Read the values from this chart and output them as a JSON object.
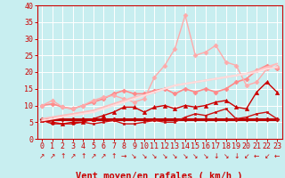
{
  "background_color": "#c8eef0",
  "grid_color": "#ffffff",
  "xlabel": "Vent moyen/en rafales ( km/h )",
  "xlim": [
    -0.5,
    23.5
  ],
  "ylim": [
    0,
    40
  ],
  "yticks": [
    0,
    5,
    10,
    15,
    20,
    25,
    30,
    35,
    40
  ],
  "xticks": [
    0,
    1,
    2,
    3,
    4,
    5,
    6,
    7,
    8,
    9,
    10,
    11,
    12,
    13,
    14,
    15,
    16,
    17,
    18,
    19,
    20,
    21,
    22,
    23
  ],
  "lines": [
    {
      "y": [
        5.8,
        5.8,
        5.8,
        5.8,
        5.8,
        5.8,
        5.8,
        5.8,
        5.8,
        5.8,
        5.8,
        5.8,
        5.8,
        5.8,
        5.8,
        5.8,
        5.8,
        5.8,
        5.8,
        5.8,
        5.8,
        5.8,
        5.8,
        5.8
      ],
      "color": "#bb0000",
      "lw": 2.2,
      "marker": "D",
      "ms": 2.5,
      "ls": "-"
    },
    {
      "y": [
        5.5,
        4.5,
        4.5,
        4.5,
        5.0,
        4.5,
        5.0,
        5.5,
        4.5,
        4.5,
        5.0,
        5.5,
        5.0,
        5.0,
        6.5,
        7.5,
        7.0,
        8.0,
        9.0,
        6.0,
        6.5,
        7.5,
        8.0,
        6.0
      ],
      "color": "#cc1111",
      "lw": 1.0,
      "marker": "s",
      "ms": 2.0,
      "ls": "-"
    },
    {
      "y": [
        5.5,
        5.0,
        4.5,
        5.0,
        5.0,
        6.0,
        7.0,
        8.0,
        9.5,
        9.5,
        8.0,
        9.5,
        10.0,
        9.0,
        10.0,
        9.5,
        10.0,
        11.0,
        11.5,
        9.5,
        9.0,
        14.0,
        17.0,
        14.0
      ],
      "color": "#cc0000",
      "lw": 1.0,
      "marker": "^",
      "ms": 3.0,
      "ls": "-"
    },
    {
      "y": [
        10.0,
        10.5,
        9.5,
        9.0,
        10.0,
        11.0,
        12.0,
        13.5,
        14.5,
        13.5,
        13.5,
        14.5,
        15.0,
        13.5,
        15.0,
        14.0,
        15.0,
        14.0,
        15.0,
        17.0,
        18.0,
        20.5,
        22.0,
        21.0
      ],
      "color": "#ff8888",
      "lw": 1.2,
      "marker": "D",
      "ms": 2.5,
      "ls": "-"
    },
    {
      "y": [
        10.0,
        11.5,
        9.5,
        9.0,
        10.0,
        11.5,
        12.5,
        13.0,
        12.0,
        11.0,
        12.0,
        18.5,
        22.0,
        27.0,
        37.0,
        25.0,
        26.0,
        28.0,
        23.0,
        22.0,
        16.0,
        17.0,
        21.0,
        21.5
      ],
      "color": "#ffaaaa",
      "lw": 1.0,
      "marker": "D",
      "ms": 2.5,
      "ls": "-"
    },
    {
      "y": [
        6.0,
        6.5,
        7.0,
        7.5,
        8.0,
        8.5,
        9.5,
        10.5,
        11.5,
        12.5,
        13.0,
        14.0,
        15.0,
        16.0,
        16.5,
        17.0,
        17.5,
        18.0,
        18.5,
        19.0,
        19.5,
        20.5,
        21.5,
        22.5
      ],
      "color": "#ffbbbb",
      "lw": 1.4,
      "marker": null,
      "ms": 0,
      "ls": "-"
    },
    {
      "y": [
        5.5,
        6.0,
        6.5,
        7.0,
        7.5,
        8.0,
        9.0,
        10.0,
        11.0,
        12.0,
        13.0,
        14.0,
        15.0,
        16.0,
        16.5,
        17.0,
        17.5,
        18.0,
        18.5,
        19.0,
        19.5,
        20.0,
        21.0,
        21.5
      ],
      "color": "#ffdddd",
      "lw": 1.4,
      "marker": null,
      "ms": 0,
      "ls": "-"
    }
  ],
  "wind_arrows": [
    "↗",
    "↗",
    "↑",
    "↗",
    "↑",
    "↗",
    "↗",
    "↑",
    "→",
    "↘",
    "↘",
    "↘",
    "↘",
    "↘",
    "↘",
    "↘",
    "↘",
    "↓",
    "↘",
    "↓",
    "↙",
    "←",
    "↙",
    "←"
  ],
  "xlabel_color": "#cc0000",
  "xlabel_fontsize": 7.5,
  "tick_color": "#cc0000",
  "tick_fontsize": 6.0
}
